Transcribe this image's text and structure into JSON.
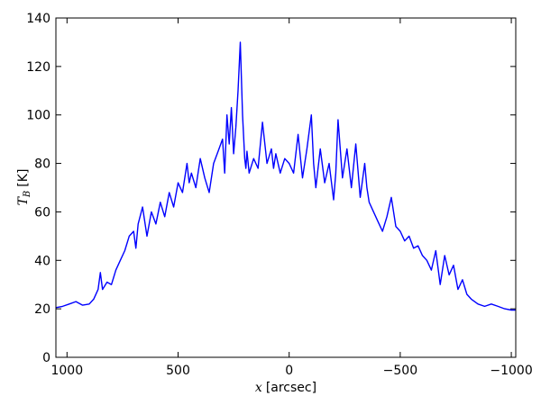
{
  "chart_data": {
    "type": "line",
    "title": "",
    "xlabel": "x [arcsec]",
    "xlabel_var": "x",
    "xlabel_unit": "[arcsec]",
    "ylabel": "T_B [K]",
    "ylabel_var": "T",
    "ylabel_sub": "B",
    "ylabel_unit": "[K]",
    "xlim": [
      1050,
      -1020
    ],
    "ylim": [
      0,
      140
    ],
    "x_reversed": true,
    "xticks": [
      1000,
      500,
      0,
      -500,
      -1000
    ],
    "xtick_labels": [
      "1000",
      "500",
      "0",
      "−500",
      "−1000"
    ],
    "yticks": [
      0,
      20,
      40,
      60,
      80,
      100,
      120,
      140
    ],
    "ytick_labels": [
      "0",
      "20",
      "40",
      "60",
      "80",
      "100",
      "120",
      "140"
    ],
    "grid": false,
    "series": [
      {
        "color": "#0000ff",
        "x": [
          1050,
          1020,
          990,
          960,
          930,
          900,
          880,
          860,
          850,
          840,
          820,
          800,
          780,
          760,
          740,
          720,
          700,
          690,
          680,
          660,
          640,
          620,
          600,
          580,
          560,
          540,
          520,
          500,
          480,
          460,
          450,
          440,
          420,
          400,
          380,
          360,
          340,
          320,
          300,
          290,
          280,
          270,
          260,
          250,
          240,
          230,
          220,
          210,
          200,
          195,
          190,
          180,
          160,
          140,
          120,
          100,
          80,
          70,
          60,
          40,
          20,
          0,
          -20,
          -40,
          -60,
          -80,
          -100,
          -110,
          -120,
          -140,
          -160,
          -180,
          -200,
          -210,
          -220,
          -240,
          -260,
          -280,
          -300,
          -320,
          -340,
          -350,
          -360,
          -380,
          -400,
          -420,
          -440,
          -460,
          -480,
          -500,
          -520,
          -540,
          -560,
          -580,
          -600,
          -620,
          -640,
          -660,
          -680,
          -700,
          -720,
          -740,
          -760,
          -780,
          -800,
          -820,
          -850,
          -880,
          -910,
          -940,
          -970,
          -1000,
          -1020
        ],
        "y": [
          20.5,
          21,
          22,
          23,
          21.5,
          22,
          24,
          28,
          35,
          28,
          31,
          30,
          36,
          40,
          44,
          50,
          52,
          45,
          55,
          62,
          50,
          60,
          55,
          64,
          58,
          68,
          62,
          72,
          68,
          80,
          72,
          76,
          70,
          82,
          74,
          68,
          80,
          85,
          90,
          76,
          100,
          88,
          103,
          84,
          95,
          110,
          130,
          100,
          82,
          78,
          85,
          76,
          82,
          78,
          97,
          80,
          86,
          78,
          84,
          76,
          82,
          80,
          76,
          92,
          74,
          86,
          100,
          80,
          70,
          86,
          72,
          80,
          65,
          76,
          98,
          74,
          86,
          70,
          88,
          66,
          80,
          70,
          64,
          60,
          56,
          52,
          58,
          66,
          54,
          52,
          48,
          50,
          45,
          46,
          42,
          40,
          36,
          44,
          30,
          42,
          34,
          38,
          28,
          32,
          26,
          24,
          22,
          21,
          22,
          21,
          20,
          19.5,
          19.5
        ]
      }
    ]
  }
}
